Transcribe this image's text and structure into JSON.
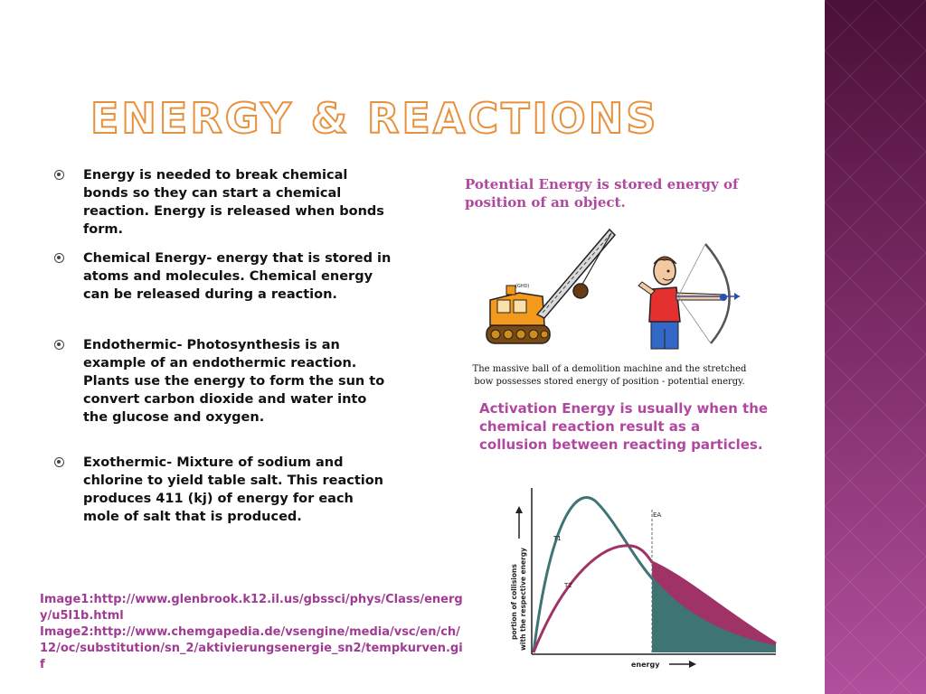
{
  "slide": {
    "title": "Energy & Reactions",
    "bullets": [
      "Energy is needed to break chemical bonds so they can start a chemical reaction. Energy is released when bonds form.",
      "Chemical Energy- energy that is stored in atoms and molecules. Chemical energy can be released during a reaction.",
      "Endothermic- Photosynthesis is an example of an endothermic reaction. Plants use the energy to form the sun to convert carbon dioxide and water into the glucose and oxygen.",
      "Exothermic- Mixture of sodium and chlorine to yield table salt. This reaction produces 411 (kj) of energy for each mole of salt that is produced."
    ],
    "potential_energy_heading": "Potential Energy is stored energy of position of an object.",
    "illustration_caption": "The massive ball of a demolition machine and the stretched bow possesses stored energy of position - potential energy.",
    "activation_energy_heading": "Activation Energy is usually when the chemical reaction result as a collusion between reacting particles.",
    "graph": {
      "ylabel_line1": "portion of collisions",
      "ylabel_line2": "with the respective energy",
      "xlabel": "energy",
      "curve1_label": "T1",
      "curve2_label": "T2",
      "threshold_label": "EA"
    },
    "sources": [
      "Image1:http://www.glenbrook.k12.il.us/gbssci/phys/Class/energy/u5l1b.html",
      "Image2:http://www.chemgapedia.de/vsengine/media/vsc/en/ch/12/oc/substitution/sn_2/aktivierungsenergie_sn2/tempkurven.gif"
    ]
  },
  "colors": {
    "title_outline": "#e8913d",
    "accent": "#b048a0",
    "curve1": "#3f7474",
    "curve2": "#a03366"
  },
  "icons": [
    "demolition-crane-icon",
    "archer-with-bow-icon"
  ]
}
